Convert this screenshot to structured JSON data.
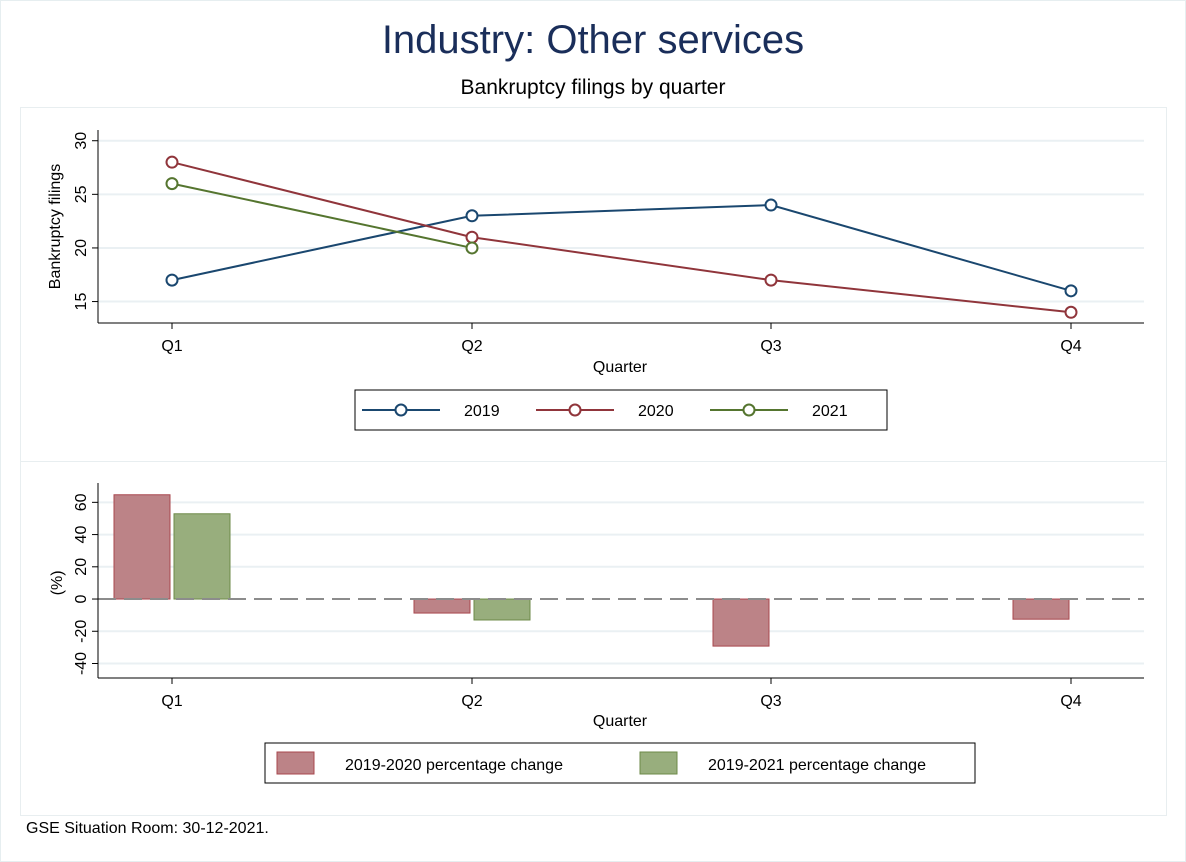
{
  "title": "Industry: Other services",
  "subtitle": "Bankruptcy filings by quarter",
  "footer": "GSE Situation Room: 30-12-2021.",
  "colors": {
    "s2019": "#1a476f",
    "s2020": "#90353b",
    "s2021": "#55752f",
    "bar2020_fill": "#bc8387",
    "bar2020_stroke": "#a8474e",
    "bar2021_fill": "#98ae7d",
    "bar2021_stroke": "#6d8a48",
    "title": "#1a2e5a"
  },
  "chart_data": [
    {
      "type": "line",
      "title": "Bankruptcy filings by quarter",
      "xlabel": "Quarter",
      "ylabel": "Bankruptcy filings",
      "categories": [
        "Q1",
        "Q2",
        "Q3",
        "Q4"
      ],
      "yticks": [
        15,
        20,
        25,
        30
      ],
      "ylim": [
        13,
        31
      ],
      "grid": true,
      "legend_position": "bottom",
      "series": [
        {
          "name": "2019",
          "values": [
            17,
            23,
            24,
            16
          ]
        },
        {
          "name": "2020",
          "values": [
            28,
            21,
            17,
            14
          ]
        },
        {
          "name": "2021",
          "values": [
            26,
            20,
            null,
            null
          ]
        }
      ]
    },
    {
      "type": "bar",
      "xlabel": "Quarter",
      "ylabel": "(%)",
      "categories": [
        "Q1",
        "Q2",
        "Q3",
        "Q4"
      ],
      "yticks": [
        -40,
        -20,
        0,
        20,
        40,
        60
      ],
      "ylim": [
        -49,
        72
      ],
      "grid": true,
      "reference_line": 0,
      "legend_position": "bottom",
      "series": [
        {
          "name": "2019-2020 percentage change",
          "values": [
            64.7,
            -8.7,
            -29.2,
            -12.5
          ]
        },
        {
          "name": "2019-2021 percentage change",
          "values": [
            52.9,
            -13.0,
            null,
            null
          ]
        }
      ]
    }
  ]
}
